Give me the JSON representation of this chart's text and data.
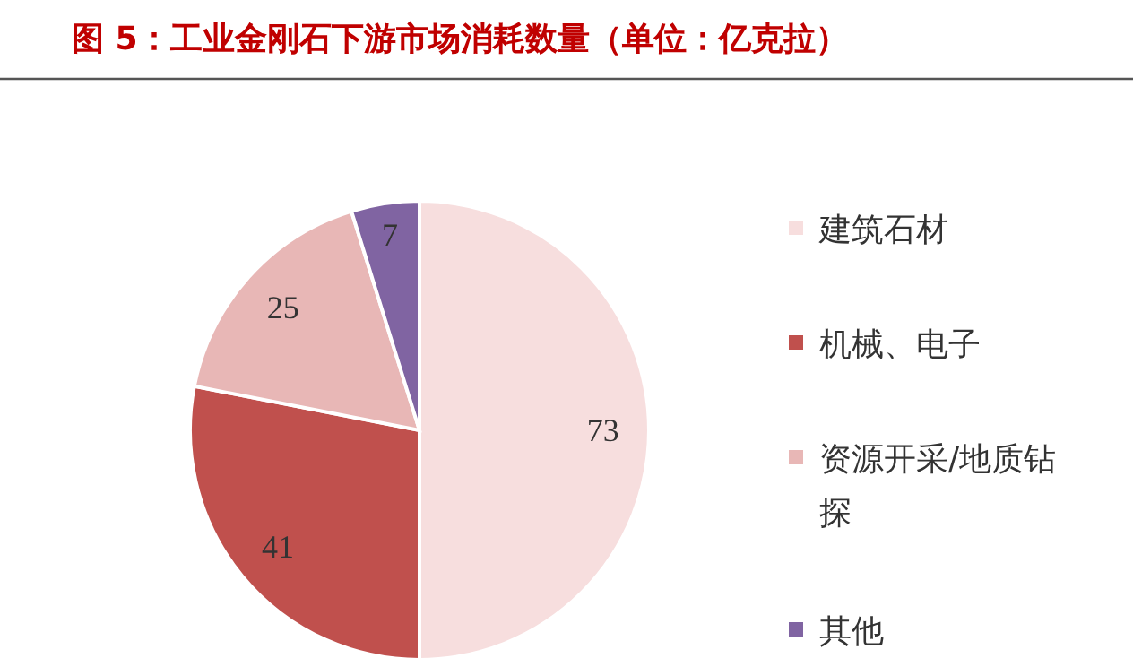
{
  "chart_data": {
    "type": "pie",
    "title": "图 5：工业金刚石下游市场消耗数量（单位：亿克拉）",
    "categories": [
      "建筑石材",
      "机械、电子",
      "资源开采/地质钻探",
      "其他"
    ],
    "values": [
      73,
      41,
      25,
      7
    ],
    "colors": [
      "#f7dede",
      "#c0504d",
      "#e8b7b6",
      "#8064a2"
    ],
    "data_labels": true,
    "legend": "right"
  }
}
